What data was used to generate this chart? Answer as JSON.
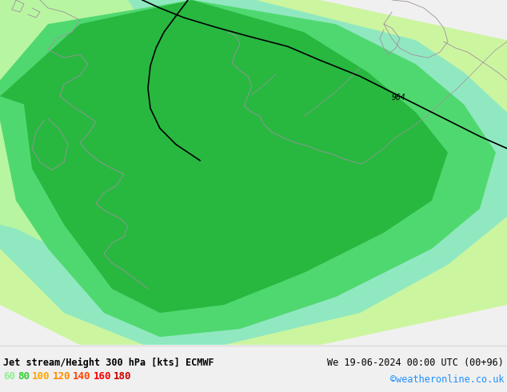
{
  "title_left": "Jet stream/Height 300 hPa [kts] ECMWF",
  "title_right": "We 19-06-2024 00:00 UTC (00+96)",
  "credit": "©weatheronline.co.uk",
  "legend_values": [
    "60",
    "80",
    "100",
    "120",
    "140",
    "160",
    "180"
  ],
  "legend_colors": [
    "#90ee90",
    "#32cd32",
    "#ffa500",
    "#ff8c00",
    "#ff4500",
    "#ff0000",
    "#cc0000"
  ],
  "bg_color": "#f0f0f0",
  "map_bg": "#f0f0f0",
  "contour_label": "964",
  "figsize": [
    6.34,
    4.9
  ],
  "dpi": 100,
  "color_outermost": "#ccf5a0",
  "color_outer": "#90e8b0",
  "color_mid": "#50d870",
  "color_inner": "#28c850",
  "color_core": "#20a840",
  "color_uk_green": "#b8f0a0",
  "color_map_bg": "#ececec"
}
